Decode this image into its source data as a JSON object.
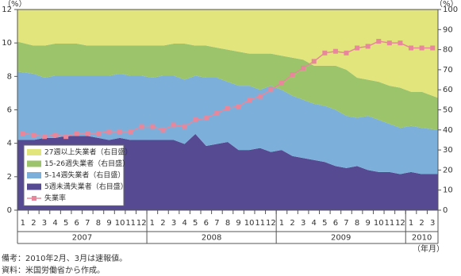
{
  "chart_data": {
    "type": "area",
    "stacked": true,
    "y_unit_label": "（%）",
    "y2_unit_label": "（%）",
    "x_unit_label": "（年月）",
    "categories": [
      "1",
      "2",
      "3",
      "4",
      "5",
      "6",
      "7",
      "8",
      "9",
      "10",
      "11",
      "12",
      "1",
      "2",
      "3",
      "4",
      "5",
      "6",
      "7",
      "8",
      "9",
      "10",
      "11",
      "12",
      "1",
      "2",
      "3",
      "4",
      "5",
      "6",
      "7",
      "8",
      "9",
      "10",
      "11",
      "12",
      "1",
      "2",
      "3"
    ],
    "years": [
      "2007",
      "2008",
      "2009",
      "2010"
    ],
    "ylim": [
      0,
      12
    ],
    "yticks": [
      0,
      2,
      4,
      6,
      8,
      10,
      12
    ],
    "y2lim": [
      0,
      100
    ],
    "y2ticks": [
      0,
      10,
      20,
      30,
      40,
      50,
      60,
      70,
      80,
      90,
      100
    ],
    "legend": "lower left",
    "series": [
      {
        "name": "27週以上失業者（右目盛）",
        "color": "#e2e47c",
        "axis": "y2",
        "values": [
          16,
          18,
          18,
          17,
          17,
          17,
          18,
          18,
          18,
          18,
          18,
          18,
          18,
          18,
          17,
          17,
          18,
          18,
          19,
          20,
          21,
          22,
          22,
          22,
          23,
          24,
          25,
          28,
          28,
          28,
          30,
          34,
          35,
          36,
          38,
          39,
          41,
          41,
          44
        ]
      },
      {
        "name": "15-26週失業者（右目盛）",
        "color": "#9cc46b",
        "axis": "y2",
        "values": [
          15,
          14,
          16,
          16,
          16,
          16,
          15,
          15,
          15,
          14,
          15,
          15,
          16,
          15,
          16,
          18,
          15,
          16,
          15,
          16,
          17,
          16,
          18,
          16,
          17,
          19,
          20,
          19,
          20,
          22,
          23,
          20,
          18,
          19,
          19,
          20,
          17,
          18,
          16
        ]
      },
      {
        "name": "5-14週失業者（右目盛）",
        "color": "#7cb0da",
        "axis": "y2",
        "values": [
          34,
          33,
          30,
          31,
          30,
          30,
          30,
          31,
          32,
          32,
          32,
          32,
          31,
          32,
          32,
          32,
          29,
          34,
          33,
          30,
          32,
          32,
          29,
          33,
          30,
          30,
          29,
          28,
          28,
          28,
          26,
          24,
          27,
          26,
          24,
          23,
          23,
          23,
          22
        ]
      },
      {
        "name": "5週未満失業者（右目盛）",
        "color": "#564a93",
        "axis": "y2",
        "values": [
          35,
          35,
          36,
          36,
          37,
          37,
          37,
          36,
          35,
          36,
          35,
          35,
          35,
          35,
          35,
          33,
          38,
          32,
          33,
          34,
          30,
          30,
          31,
          29,
          30,
          27,
          26,
          25,
          24,
          22,
          21,
          22,
          20,
          19,
          19,
          18,
          19,
          18,
          18
        ]
      },
      {
        "name": "失業率",
        "color": "#e8879c",
        "type": "line",
        "values": [
          4.6,
          4.5,
          4.4,
          4.5,
          4.4,
          4.6,
          4.6,
          4.6,
          4.7,
          4.7,
          4.7,
          5.0,
          5.0,
          4.8,
          5.1,
          5.0,
          5.4,
          5.5,
          5.8,
          6.1,
          6.2,
          6.6,
          6.8,
          7.2,
          7.6,
          8.1,
          8.5,
          8.9,
          9.4,
          9.5,
          9.4,
          9.7,
          9.8,
          10.1,
          10.0,
          10.0,
          9.7,
          9.7,
          9.7
        ]
      }
    ]
  },
  "notes": [
    "備考：2010年2月、3月は速報値。",
    "資料：米国労働省から作成。"
  ]
}
